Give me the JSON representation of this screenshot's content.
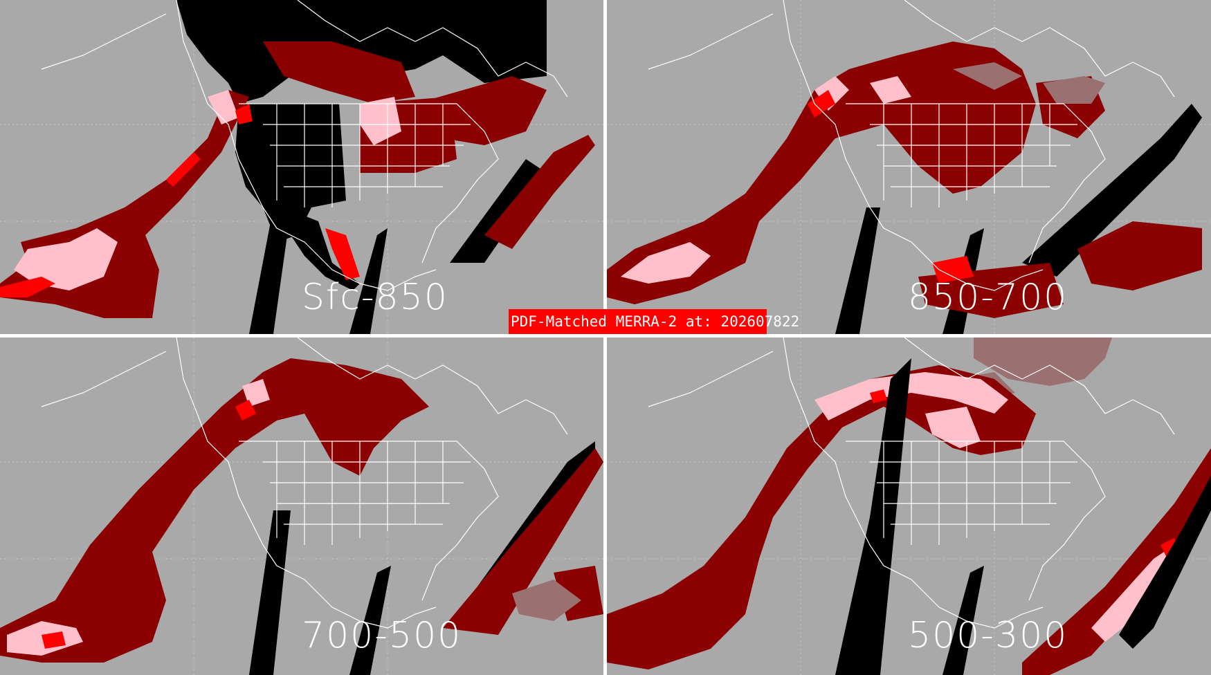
{
  "banner": {
    "text": "PDF-Matched MERRA-2 at: 202607822"
  },
  "panels": [
    {
      "label": "Sfc-850"
    },
    {
      "label": "850-700"
    },
    {
      "label": "700-500"
    },
    {
      "label": "500-300"
    }
  ],
  "colors": {
    "background": "#a9a9a9",
    "boundaries": "#ffffff",
    "no_data": "#000000",
    "dark_red": "#8b0000",
    "red": "#ff0000",
    "pink": "#ffc0cb",
    "rosy_brown": "#9a7070"
  }
}
